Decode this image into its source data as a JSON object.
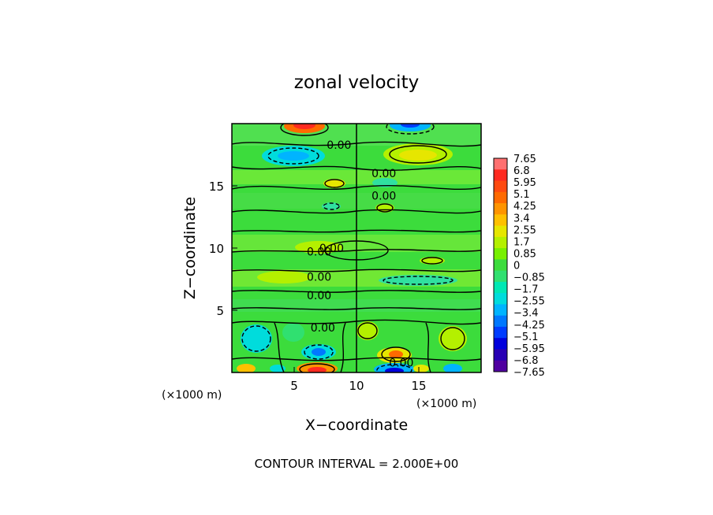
{
  "chart_data": {
    "type": "heatmap",
    "title": "zonal velocity",
    "xlabel": "X−coordinate",
    "ylabel": "Z−coordinate",
    "x_unit_left": "(×1000 m)",
    "x_unit_right": "(×1000 m)",
    "xlim": [
      0,
      20
    ],
    "ylim": [
      0,
      20
    ],
    "x_ticks": [
      "5",
      "10",
      "15"
    ],
    "y_ticks": [
      "5",
      "10",
      "15"
    ],
    "footer": "CONTOUR INTERVAL = 2.000E+00",
    "colorbar": {
      "labels": [
        "7.65",
        "6.8",
        "5.95",
        "5.1",
        "4.25",
        "3.4",
        "2.55",
        "1.7",
        "0.85",
        "0",
        "−0.85",
        "−1.7",
        "−2.55",
        "−3.4",
        "−4.25",
        "−5.1",
        "−5.95",
        "−6.8",
        "−7.65"
      ],
      "colors": [
        "#ff7070",
        "#ff2a20",
        "#ff4a10",
        "#ff6a00",
        "#ff9400",
        "#ffc000",
        "#e6e600",
        "#b4f000",
        "#78f000",
        "#3cdc3c",
        "#30e070",
        "#00e8b4",
        "#00dcdc",
        "#00b4ff",
        "#0078ff",
        "#003cff",
        "#0000dc",
        "#2800b4",
        "#5000a0"
      ]
    },
    "contour_labels": [
      {
        "text": "0.00",
        "x": 8.6,
        "z": 18.3
      },
      {
        "text": "0.00",
        "x": 12.2,
        "z": 16.0
      },
      {
        "text": "0.00",
        "x": 12.2,
        "z": 14.2
      },
      {
        "text": "0.00",
        "x": 7.0,
        "z": 9.7
      },
      {
        "text": "0.00",
        "x": 8.0,
        "z": 10.0
      },
      {
        "text": "0.00",
        "x": 7.0,
        "z": 7.7
      },
      {
        "text": "0.00",
        "x": 7.0,
        "z": 6.2
      },
      {
        "text": "0.00",
        "x": 7.3,
        "z": 3.6
      },
      {
        "text": "0.00",
        "x": 13.6,
        "z": 0.8
      }
    ]
  }
}
